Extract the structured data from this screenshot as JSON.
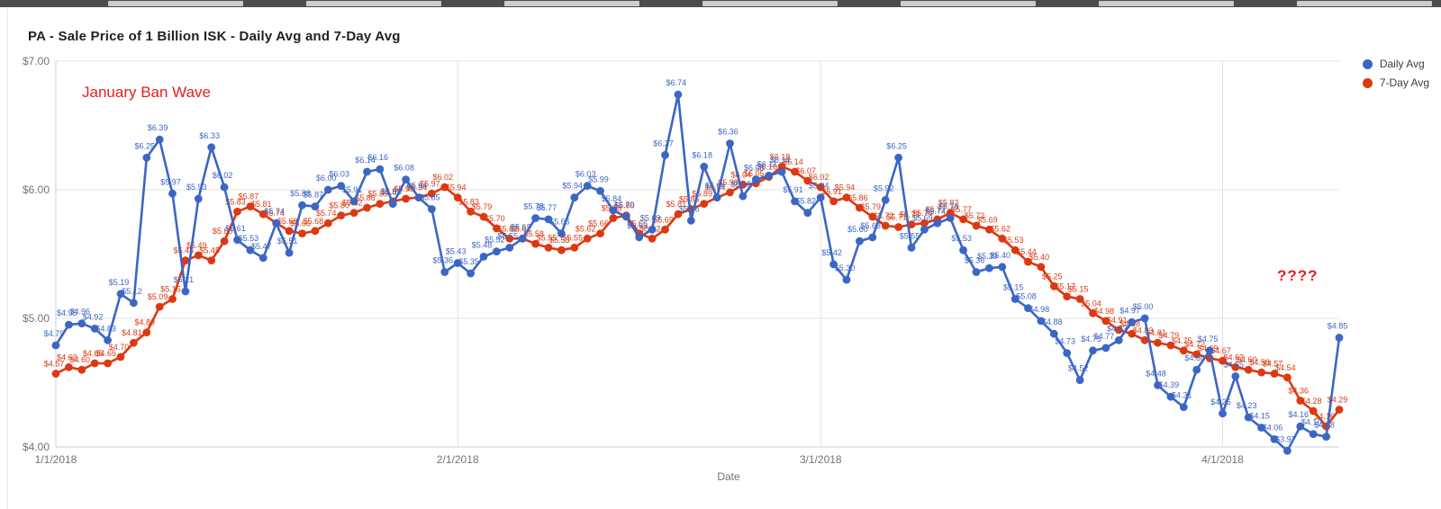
{
  "window": {
    "strip_segments": [
      120,
      340,
      560,
      780,
      1000,
      1220,
      1440
    ]
  },
  "chart_data": {
    "type": "line",
    "title": "PA - Sale Price of 1 Billion ISK - Daily Avg and 7-Day Avg",
    "xlabel": "Date",
    "ylabel": "",
    "ylim": [
      4.0,
      7.0
    ],
    "grid": true,
    "legend_position": "top-right",
    "currency_prefix": "$",
    "y_ticks": [
      {
        "label": "$7.00",
        "value": 7.0
      },
      {
        "label": "$6.00",
        "value": 6.0
      },
      {
        "label": "$5.00",
        "value": 5.0
      },
      {
        "label": "$4.00",
        "value": 4.0
      }
    ],
    "x_ticks": [
      {
        "label": "1/1/2018",
        "index": 0
      },
      {
        "label": "2/1/2018",
        "index": 31
      },
      {
        "label": "3/1/2018",
        "index": 59
      },
      {
        "label": "4/1/2018",
        "index": 90
      }
    ],
    "n_points": 100,
    "annotations": [
      {
        "text": "January Ban Wave",
        "color": "#ea1d1d"
      },
      {
        "text": "????",
        "color": "#ea1d1d"
      }
    ],
    "series": [
      {
        "name": "Daily Avg",
        "color": "#3c66c4",
        "values": [
          4.79,
          4.95,
          4.96,
          4.92,
          4.83,
          5.19,
          5.12,
          6.25,
          6.39,
          5.97,
          5.21,
          5.93,
          6.33,
          6.02,
          5.61,
          5.53,
          5.47,
          5.74,
          5.51,
          5.88,
          5.87,
          6.0,
          6.03,
          5.91,
          6.14,
          6.16,
          5.89,
          6.08,
          5.94,
          5.85,
          5.36,
          5.43,
          5.35,
          5.48,
          5.52,
          5.55,
          5.62,
          5.78,
          5.77,
          5.66,
          5.94,
          6.03,
          5.99,
          5.84,
          5.79,
          5.63,
          5.69,
          6.27,
          6.74,
          5.76,
          6.18,
          5.94,
          6.36,
          5.95,
          6.08,
          6.11,
          6.14,
          5.91,
          5.82,
          5.94,
          5.42,
          5.3,
          5.6,
          5.63,
          5.92,
          6.25,
          5.55,
          5.69,
          5.74,
          5.78,
          5.53,
          5.36,
          5.39,
          5.4,
          5.15,
          5.08,
          4.98,
          4.88,
          4.73,
          4.52,
          4.75,
          4.77,
          4.83,
          4.97,
          5.0,
          4.48,
          4.39,
          4.31,
          4.6,
          4.75,
          4.26,
          4.55,
          4.23,
          4.15,
          4.06,
          3.97,
          4.16,
          4.1,
          4.08,
          4.85
        ]
      },
      {
        "name": "7-Day Avg",
        "color": "#dc3912",
        "values": [
          4.57,
          4.62,
          4.6,
          4.65,
          4.65,
          4.7,
          4.81,
          4.89,
          5.09,
          5.15,
          5.45,
          5.49,
          5.45,
          5.6,
          5.83,
          5.87,
          5.81,
          5.74,
          5.68,
          5.66,
          5.68,
          5.74,
          5.8,
          5.82,
          5.86,
          5.89,
          5.91,
          5.93,
          5.94,
          5.97,
          6.02,
          5.94,
          5.83,
          5.79,
          5.7,
          5.62,
          5.62,
          5.58,
          5.55,
          5.53,
          5.55,
          5.62,
          5.66,
          5.78,
          5.8,
          5.66,
          5.62,
          5.69,
          5.81,
          5.85,
          5.89,
          5.94,
          5.98,
          6.04,
          6.05,
          6.1,
          6.18,
          6.14,
          6.07,
          6.02,
          5.91,
          5.94,
          5.86,
          5.79,
          5.72,
          5.71,
          5.73,
          5.74,
          5.77,
          5.82,
          5.77,
          5.72,
          5.69,
          5.62,
          5.53,
          5.44,
          5.4,
          5.25,
          5.17,
          5.15,
          5.04,
          4.98,
          4.91,
          4.88,
          4.83,
          4.81,
          4.79,
          4.75,
          4.72,
          4.69,
          4.67,
          4.62,
          4.6,
          4.58,
          4.57,
          4.54,
          4.36,
          4.28,
          4.16,
          4.29
        ]
      }
    ]
  }
}
